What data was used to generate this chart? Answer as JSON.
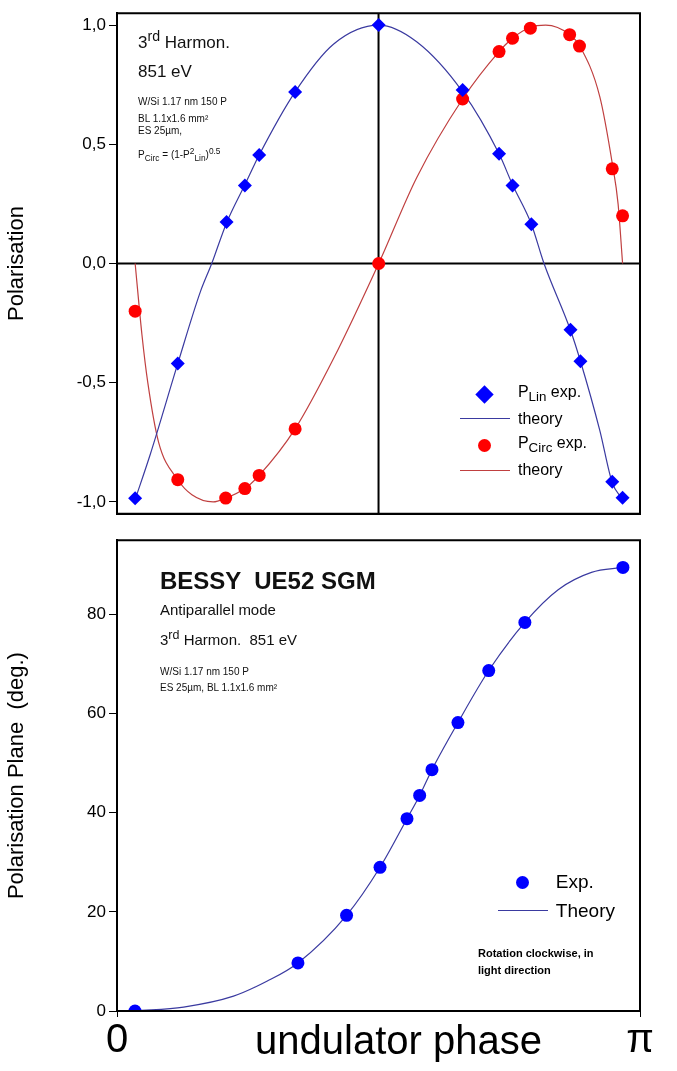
{
  "chart_data": [
    {
      "type": "scatter",
      "ylabel": "Polarisation",
      "xlim": [
        0,
        3.1416
      ],
      "ylim": [
        -1.05,
        1.05
      ],
      "yticks": [
        {
          "value": -1,
          "label": "-1,0"
        },
        {
          "value": -0.5,
          "label": "-0,5"
        },
        {
          "value": 0,
          "label": "0,0"
        },
        {
          "value": 0.5,
          "label": "0,5"
        },
        {
          "value": 1,
          "label": "1,0"
        }
      ],
      "tick_labels": "y",
      "grid": false,
      "legend": "bottom right",
      "ref_lines": [
        {
          "axis": "x",
          "value": 1.571,
          "color": "#000000"
        },
        {
          "axis": "y",
          "value": 0,
          "color": "#000000"
        }
      ],
      "annotations": [
        "3$^{rd}$ Harmon.",
        "851 eV",
        "W/Si 1.17 nm 150 P",
        "BL 1.1x1.6 mm²",
        "ES 25µm,",
        "P$_{Circ}$ = (1-P$^{2}$$_{Lin}$)$^{0.5}$"
      ],
      "series": [
        {
          "name": "P$_{Lin}$ exp.",
          "type": "scatter",
          "marker": "diamond",
          "color": "#0000ff",
          "x": [
            0.109,
            0.365,
            0.658,
            0.768,
            0.854,
            1.07,
            1.572,
            2.076,
            2.295,
            2.376,
            2.489,
            2.724,
            2.784,
            2.975,
            3.037
          ],
          "values": [
            -0.985,
            -0.42,
            0.174,
            0.327,
            0.455,
            0.719,
            1.0,
            0.728,
            0.46,
            0.327,
            0.165,
            -0.278,
            -0.41,
            -0.916,
            -0.983
          ]
        },
        {
          "name": "theory",
          "type": "line",
          "marker": "none",
          "color": "#3a3aa0",
          "x": [
            0.109,
            0.2,
            0.365,
            0.5,
            0.569,
            0.658,
            0.768,
            0.854,
            1.07,
            1.3,
            1.572,
            1.8,
            2.076,
            2.295,
            2.376,
            2.489,
            2.565,
            2.724,
            2.784,
            2.9,
            2.975,
            3.037
          ],
          "values": [
            -0.99,
            -0.8,
            -0.42,
            -0.12,
            0.0,
            0.17,
            0.33,
            0.455,
            0.72,
            0.92,
            1.0,
            0.93,
            0.72,
            0.46,
            0.33,
            0.165,
            0.0,
            -0.28,
            -0.41,
            -0.7,
            -0.92,
            -0.99
          ]
        },
        {
          "name": "P$_{Circ}$ exp.",
          "type": "scatter",
          "marker": "circle",
          "color": "#ff0000",
          "x": [
            0.109,
            0.365,
            0.653,
            0.768,
            0.854,
            1.07,
            1.572,
            2.076,
            2.295,
            2.376,
            2.483,
            2.719,
            2.778,
            2.975,
            3.037
          ],
          "values": [
            -0.2,
            -0.907,
            -0.984,
            -0.944,
            -0.889,
            -0.694,
            0.0,
            0.69,
            0.889,
            0.945,
            0.987,
            0.96,
            0.912,
            0.397,
            0.2
          ]
        },
        {
          "name": "theory",
          "type": "line",
          "marker": "none",
          "color": "#c04040",
          "x": [
            0.109,
            0.15,
            0.185,
            0.25,
            0.365,
            0.45,
            0.577,
            0.655,
            0.768,
            0.854,
            1.07,
            1.3,
            1.572,
            1.8,
            2.076,
            2.295,
            2.376,
            2.48,
            2.575,
            2.72,
            2.78,
            2.9,
            2.975,
            3.01,
            3.037
          ],
          "values": [
            0.0,
            -0.3,
            -0.5,
            -0.75,
            -0.907,
            -0.97,
            -1.0,
            -0.984,
            -0.944,
            -0.889,
            -0.694,
            -0.4,
            0.0,
            0.36,
            0.69,
            0.889,
            0.945,
            0.99,
            1.0,
            0.96,
            0.912,
            0.7,
            0.42,
            0.25,
            0.0
          ]
        }
      ]
    },
    {
      "type": "scatter",
      "title": "BESSY  UE52 SGM",
      "xlabel": "undulator phase",
      "ylabel": "Polarisation Plane  (deg.)",
      "xlim": [
        0,
        3.1416
      ],
      "xticks": [
        0,
        {
          "value": 3.1416,
          "label": "π"
        }
      ],
      "ylim": [
        0,
        95
      ],
      "yticks": [
        0,
        20,
        40,
        60,
        80
      ],
      "grid": false,
      "legend": "bottom right",
      "annotations": [
        "Antiparallel mode",
        "3$^{rd}$ Harmon.  851 eV",
        "W/Si 1.17 nm 150 P",
        "ES 25µm, BL 1.1x1.6 mm²",
        "Rotation clockwise, in light direction"
      ],
      "series": [
        {
          "name": "Exp.",
          "type": "scatter",
          "marker": "circle",
          "color": "#0000ff",
          "x": [
            0.108,
            1.087,
            1.379,
            1.58,
            1.742,
            1.818,
            1.892,
            2.048,
            2.233,
            2.45,
            3.039
          ],
          "values": [
            0.0,
            9.7,
            19.3,
            29.0,
            38.8,
            43.5,
            48.7,
            58.2,
            68.7,
            78.4,
            89.5
          ]
        },
        {
          "name": "Theory",
          "type": "line",
          "marker": "none",
          "color": "#3a3aa0",
          "x": [
            0.108,
            0.4,
            0.7,
            0.9,
            1.087,
            1.379,
            1.58,
            1.742,
            1.818,
            1.892,
            2.048,
            2.233,
            2.45,
            2.65,
            2.85,
            3.039
          ],
          "values": [
            0.0,
            0.8,
            3.0,
            6.0,
            9.7,
            19.3,
            29.0,
            38.8,
            43.5,
            48.7,
            58.2,
            68.7,
            78.4,
            85.0,
            88.5,
            89.5
          ]
        }
      ]
    }
  ]
}
